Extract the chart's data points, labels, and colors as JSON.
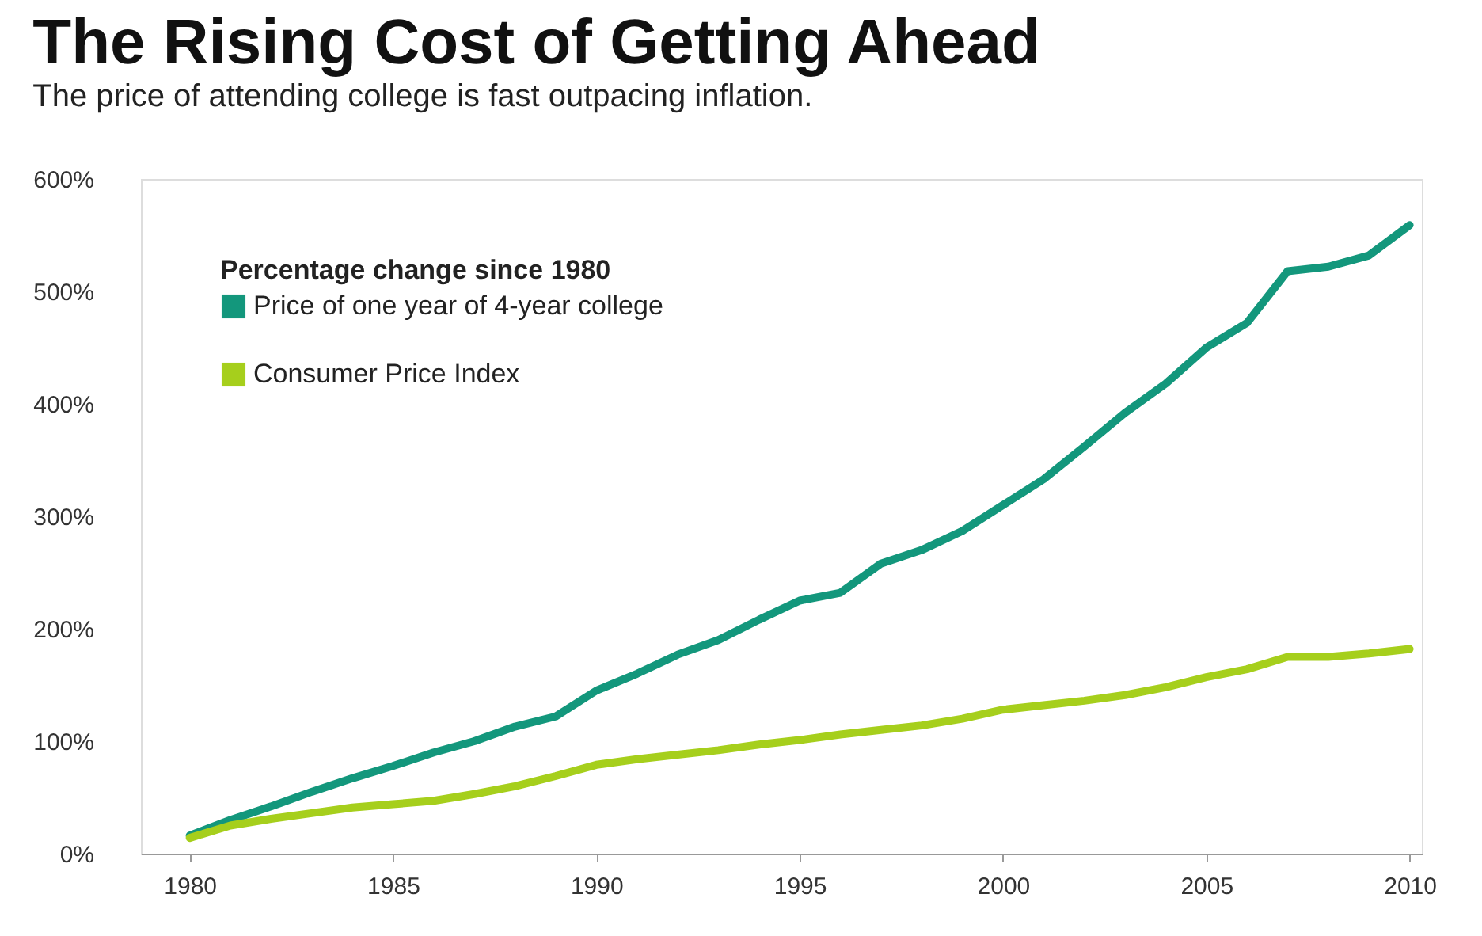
{
  "chart_data": {
    "type": "line",
    "title": "The Rising Cost of Getting Ahead",
    "subtitle": "The price of attending college is fast outpacing inflation.",
    "legend_title": "Percentage change since 1980",
    "legend": "top left",
    "grid": false,
    "marker": "none",
    "line_style": "solid",
    "x": [
      1980,
      1981,
      1982,
      1983,
      1984,
      1985,
      1986,
      1987,
      1988,
      1989,
      1990,
      1991,
      1992,
      1993,
      1994,
      1995,
      1996,
      1997,
      1998,
      1999,
      2000,
      2001,
      2002,
      2003,
      2004,
      2005,
      2006,
      2007,
      2008,
      2009,
      2010
    ],
    "xlim": [
      1978.8,
      2010.3
    ],
    "xticks": [
      1980,
      1985,
      1990,
      1995,
      2000,
      2005,
      2010
    ],
    "ylim": [
      0,
      600
    ],
    "yticks": [
      {
        "value": 0,
        "label": "0%"
      },
      {
        "value": 100,
        "label": "100%"
      },
      {
        "value": 200,
        "label": "200%"
      },
      {
        "value": 300,
        "label": "300%"
      },
      {
        "value": 400,
        "label": "400%"
      },
      {
        "value": 500,
        "label": "500%"
      },
      {
        "value": 600,
        "label": "600%"
      }
    ],
    "series": [
      {
        "name": "Price of one year of 4-year college",
        "color": "#13977c",
        "values": [
          16,
          30,
          42,
          55,
          67,
          78,
          90,
          100,
          113,
          122,
          145,
          160,
          177,
          190,
          208,
          225,
          232,
          258,
          270,
          287,
          310,
          333,
          362,
          392,
          418,
          450,
          472,
          518,
          522,
          532,
          559
        ]
      },
      {
        "name": "Consumer Price Index",
        "color": "#a6cf1c",
        "values": [
          14,
          25,
          31,
          36,
          41,
          44,
          47,
          53,
          60,
          69,
          79,
          84,
          88,
          92,
          97,
          101,
          106,
          110,
          114,
          120,
          128,
          132,
          136,
          141,
          148,
          157,
          164,
          175,
          175,
          178,
          182
        ]
      }
    ]
  }
}
